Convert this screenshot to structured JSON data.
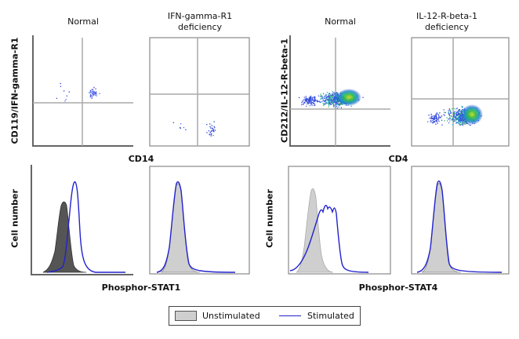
{
  "left": {
    "col1_title": "Normal",
    "col2_title_line1": "IFN-gamma-R1",
    "col2_title_line2": "deficiency",
    "scatter_ylabel": "CD119/IFN-gamma-R1",
    "scatter_xlabel": "CD14",
    "hist_ylabel": "Cell number",
    "hist_xlabel": "Phosphor-STAT1"
  },
  "right": {
    "col1_title": "Normal",
    "col2_title_line1": "IL-12-R-beta-1",
    "col2_title_line2": "deficiency",
    "scatter_ylabel": "CD212/IL-12-R-beta-1",
    "scatter_xlabel": "CD4",
    "hist_ylabel": "Cell number",
    "hist_xlabel": "Phosphor-STAT4"
  },
  "legend": {
    "unstimulated_label": "Unstimulated",
    "stimulated_label": "Stimulated",
    "unstimulated_fill": "#cfcfcf",
    "stimulated_color": "#2222cc"
  }
}
